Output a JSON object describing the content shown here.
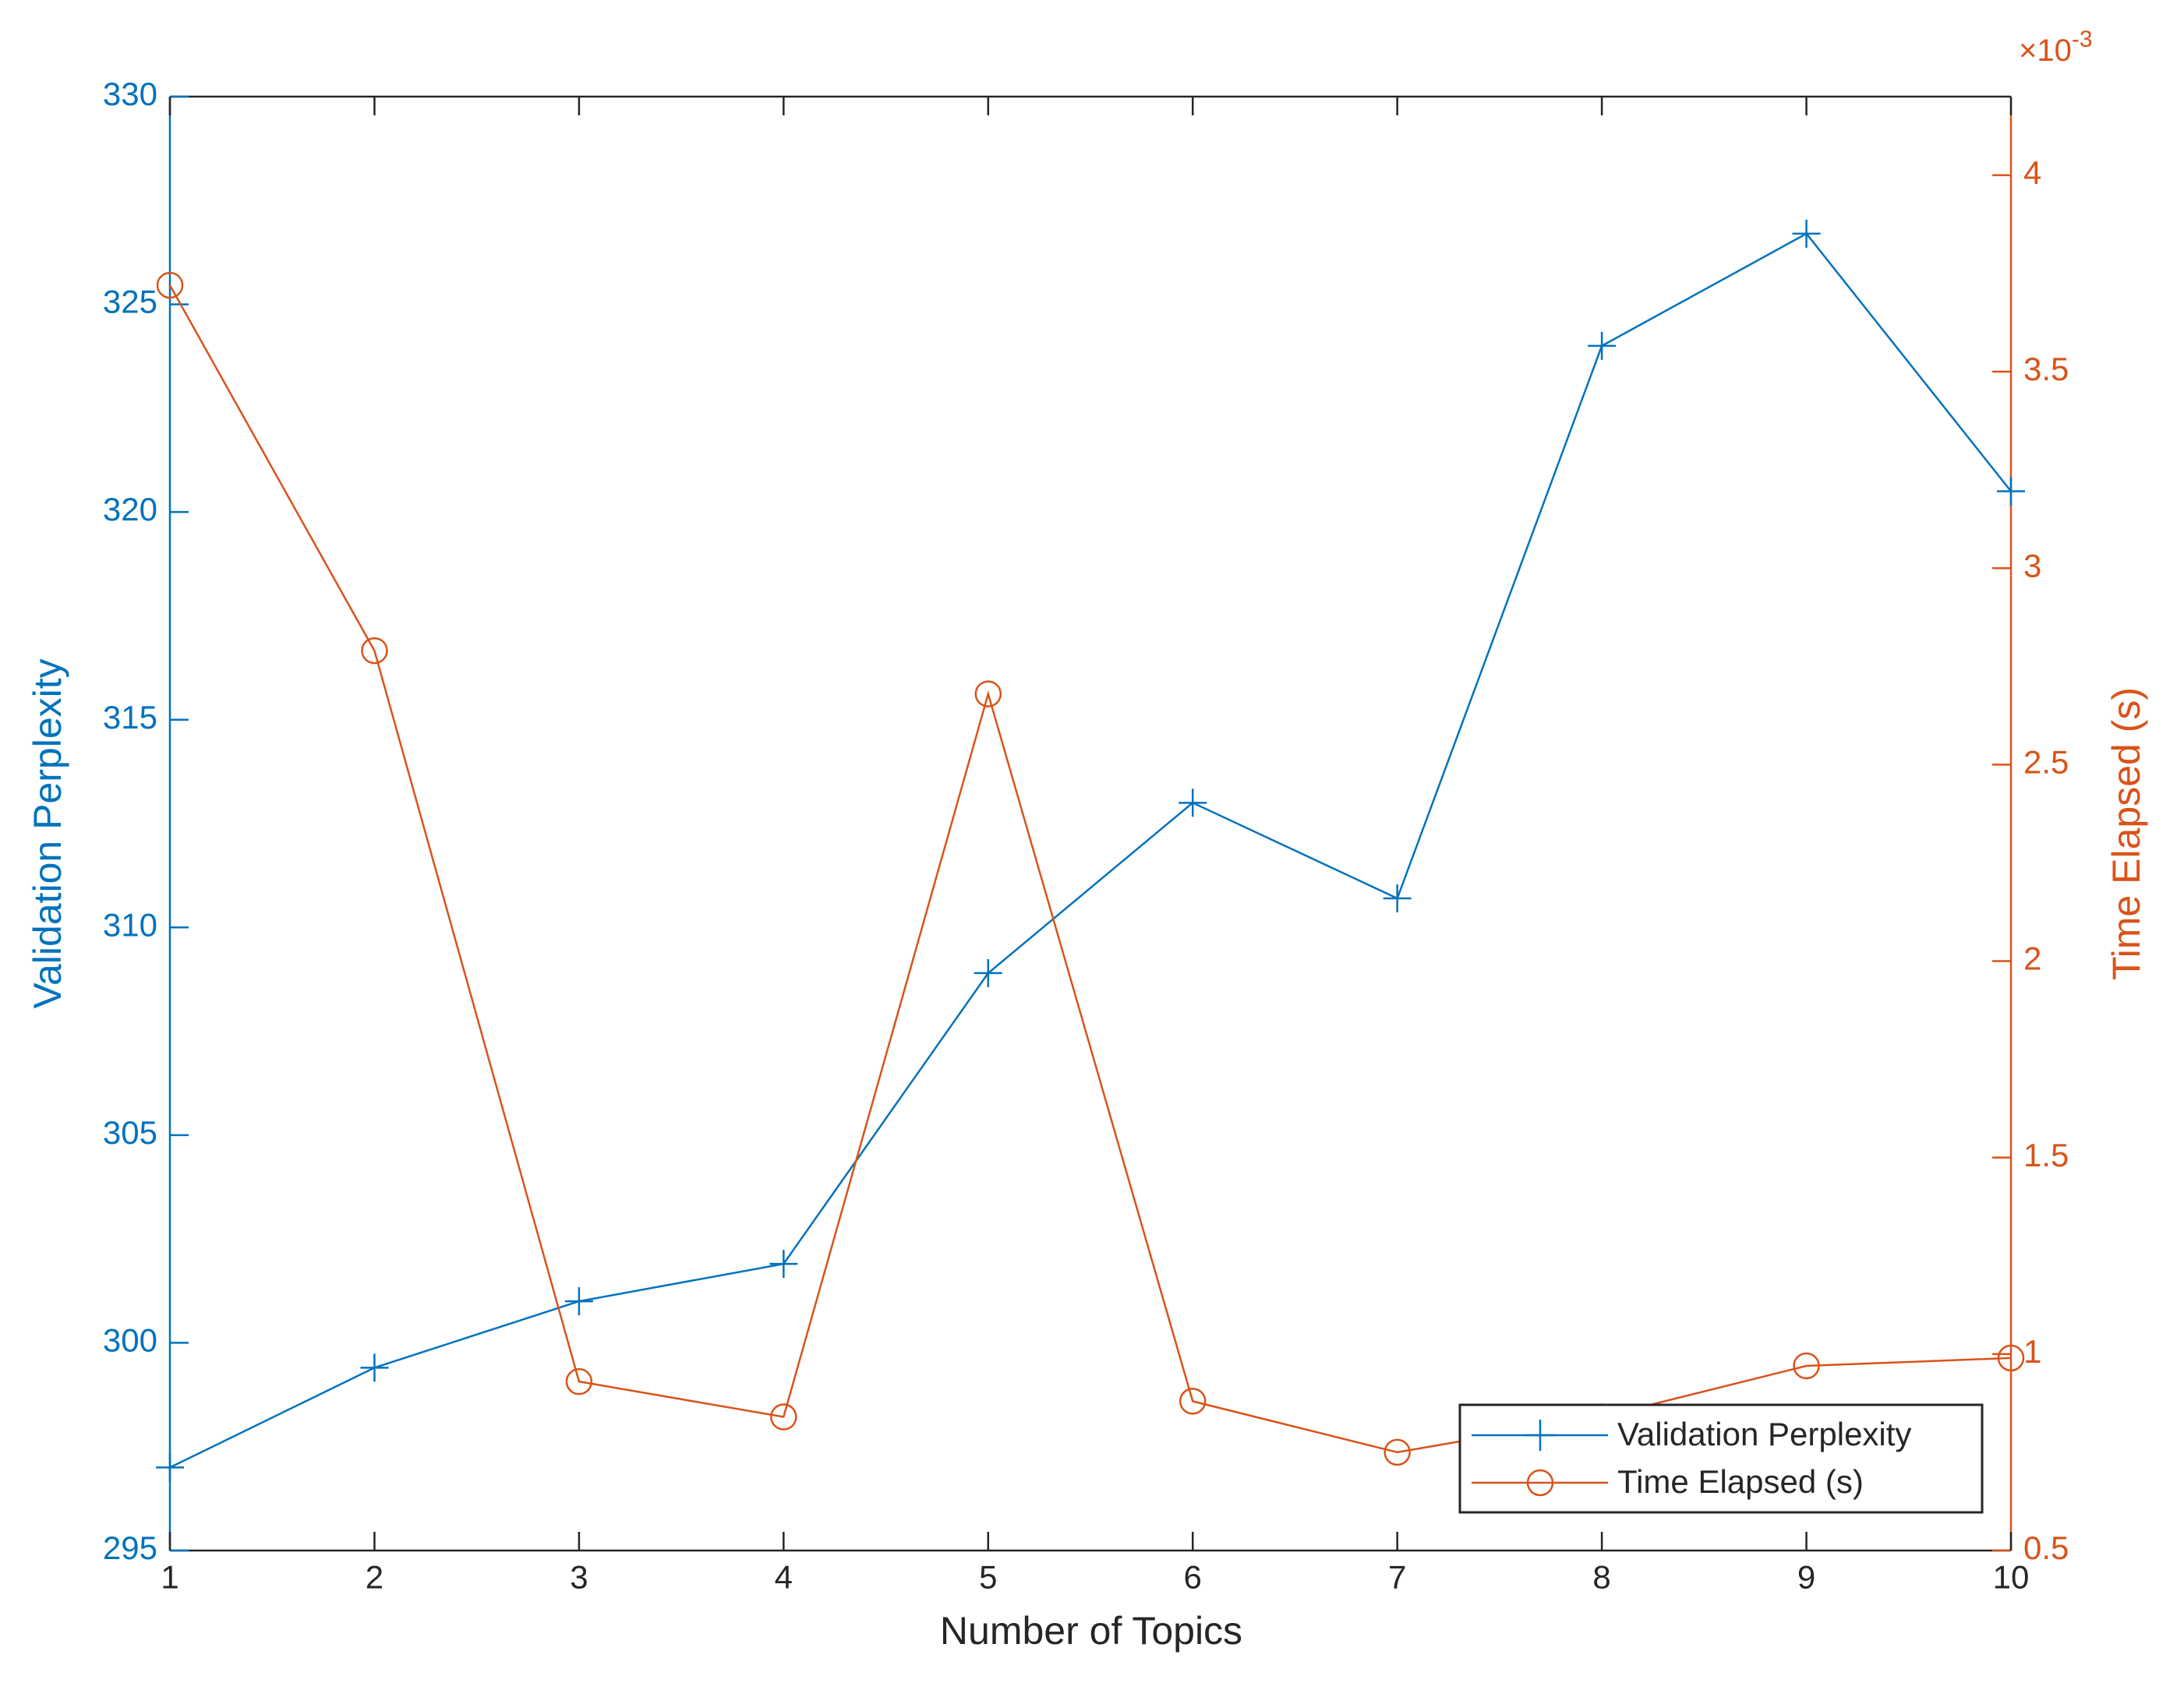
{
  "colors": {
    "left_axis": "#0072BD",
    "right_axis": "#D95319",
    "axis_black": "#262626"
  },
  "chart_data": {
    "type": "line",
    "title": "",
    "xlabel": "Number of Topics",
    "ylabel_left": "Validation Perplexity",
    "ylabel_right": "Time Elapsed (s)",
    "right_axis_exponent_label": "×10-3",
    "right_axis_exponent": -3,
    "xlim": [
      1,
      10
    ],
    "ylim_left": [
      295,
      330
    ],
    "ylim_right": [
      0.0005,
      0.0042
    ],
    "x_ticks": [
      1,
      2,
      3,
      4,
      5,
      6,
      7,
      8,
      9,
      10
    ],
    "y_ticks_left": [
      295,
      300,
      305,
      310,
      315,
      320,
      325,
      330
    ],
    "y_ticks_right_scaled": [
      "0.5",
      "1",
      "1.5",
      "2",
      "2.5",
      "3",
      "3.5",
      "4"
    ],
    "grid": false,
    "legend_position": "bottom-right",
    "x": [
      1,
      2,
      3,
      4,
      5,
      6,
      7,
      8,
      9,
      10
    ],
    "series": [
      {
        "name": "Validation Perplexity",
        "axis": "left",
        "marker": "plus",
        "color": "#0072BD",
        "values": [
          297.0,
          299.4,
          301.0,
          301.9,
          308.9,
          313.0,
          310.7,
          324.0,
          326.7,
          320.5
        ]
      },
      {
        "name": "Time Elapsed (s)",
        "axis": "right",
        "marker": "circle",
        "color": "#D95319",
        "values": [
          0.00372,
          0.00279,
          0.00093,
          0.00084,
          0.00268,
          0.00088,
          0.00075,
          0.00084,
          0.00097,
          0.00099
        ]
      }
    ]
  }
}
